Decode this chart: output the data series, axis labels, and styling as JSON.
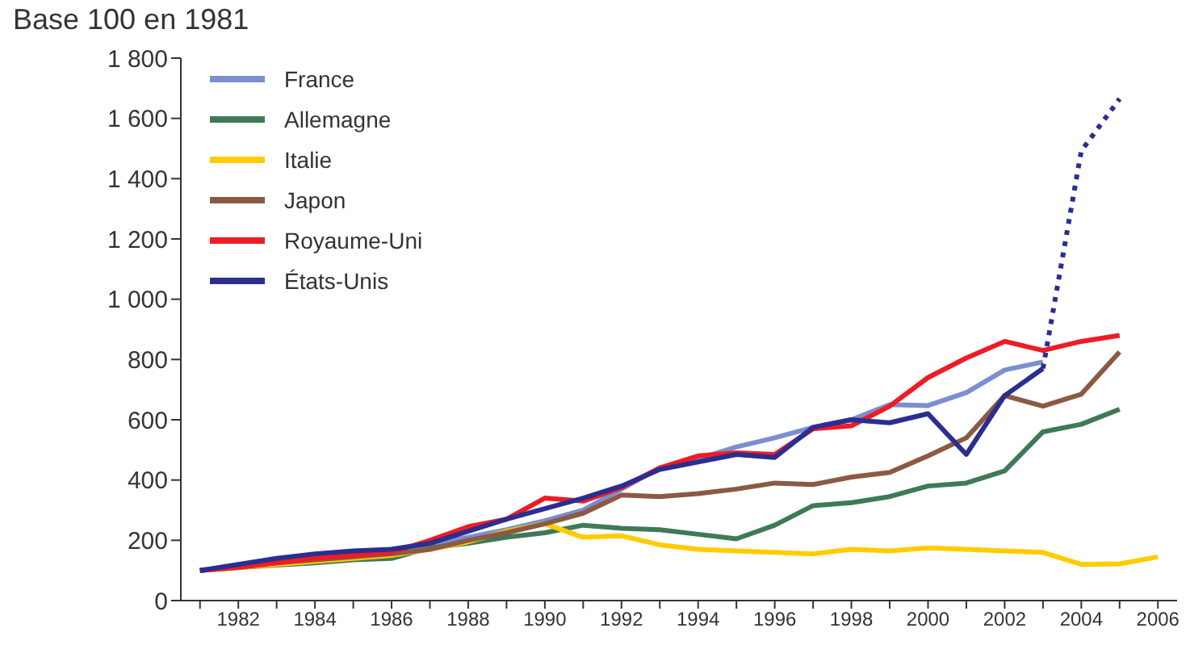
{
  "chart_data": {
    "type": "line",
    "annotations": [
      "Base 100 en 1981"
    ],
    "x": [
      1981,
      1982,
      1983,
      1984,
      1985,
      1986,
      1987,
      1988,
      1989,
      1990,
      1991,
      1992,
      1993,
      1994,
      1995,
      1996,
      1997,
      1998,
      1999,
      2000,
      2001,
      2002,
      2003,
      2004,
      2005,
      2006
    ],
    "series": [
      {
        "name": "France",
        "color": "#7b8fcf",
        "values": [
          100,
          115,
          130,
          140,
          155,
          170,
          185,
          210,
          235,
          265,
          300,
          370,
          440,
          470,
          510,
          540,
          575,
          600,
          650,
          647,
          690,
          765,
          792,
          null,
          null,
          null
        ]
      },
      {
        "name": "Allemagne",
        "color": "#3f7a57",
        "values": [
          100,
          110,
          118,
          125,
          135,
          140,
          175,
          190,
          210,
          225,
          250,
          240,
          235,
          220,
          205,
          250,
          315,
          325,
          345,
          380,
          390,
          430,
          560,
          585,
          635,
          null
        ]
      },
      {
        "name": "Italie",
        "color": "#ffcc00",
        "values": [
          100,
          110,
          120,
          130,
          140,
          150,
          170,
          195,
          230,
          255,
          210,
          215,
          185,
          170,
          165,
          160,
          155,
          170,
          165,
          175,
          170,
          165,
          160,
          120,
          122,
          145
        ]
      },
      {
        "name": "Japon",
        "color": "#8b5a44",
        "values": [
          100,
          112,
          125,
          135,
          145,
          155,
          170,
          200,
          225,
          255,
          290,
          350,
          345,
          355,
          370,
          390,
          385,
          410,
          425,
          480,
          540,
          680,
          645,
          685,
          825,
          null
        ]
      },
      {
        "name": "Royaume-Uni",
        "color": "#ee1c25",
        "values": [
          100,
          110,
          125,
          140,
          150,
          160,
          200,
          245,
          270,
          340,
          330,
          375,
          440,
          480,
          490,
          485,
          570,
          580,
          645,
          740,
          805,
          860,
          830,
          860,
          880,
          null
        ]
      },
      {
        "name": "États-Unis",
        "color": "#2b2e8f",
        "values": [
          100,
          120,
          140,
          155,
          165,
          170,
          190,
          230,
          270,
          305,
          340,
          380,
          435,
          460,
          485,
          475,
          575,
          600,
          590,
          620,
          485,
          680,
          770,
          null,
          null,
          null
        ]
      },
      {
        "color": "#2b2e8f",
        "line_style": "dotted",
        "x": [
          2003,
          2004,
          2005
        ],
        "values": [
          770,
          1492,
          1665
        ]
      }
    ],
    "xlim": [
      1980.5,
      2006.5
    ],
    "xticks": [
      {
        "value": 1981,
        "label": null
      },
      1982,
      {
        "value": 1983,
        "label": null
      },
      1984,
      {
        "value": 1985,
        "label": null
      },
      1986,
      {
        "value": 1987,
        "label": null
      },
      1988,
      {
        "value": 1989,
        "label": null
      },
      1990,
      {
        "value": 1991,
        "label": null
      },
      1992,
      {
        "value": 1993,
        "label": null
      },
      1994,
      {
        "value": 1995,
        "label": null
      },
      1996,
      {
        "value": 1997,
        "label": null
      },
      1998,
      {
        "value": 1999,
        "label": null
      },
      2000,
      {
        "value": 2001,
        "label": null
      },
      2002,
      {
        "value": 2003,
        "label": null
      },
      2004,
      {
        "value": 2005,
        "label": null
      },
      2006
    ],
    "ylim": [
      0,
      1800
    ],
    "yticks": [
      0,
      200,
      400,
      600,
      800,
      {
        "value": 1000,
        "label": "1 000"
      },
      {
        "value": 1200,
        "label": "1 200"
      },
      {
        "value": 1400,
        "label": "1 400"
      },
      {
        "value": 1600,
        "label": "1 600"
      },
      {
        "value": 1800,
        "label": "1 800"
      }
    ],
    "grid": false,
    "legend": "top left",
    "marker": "none",
    "line_style": "solid"
  }
}
